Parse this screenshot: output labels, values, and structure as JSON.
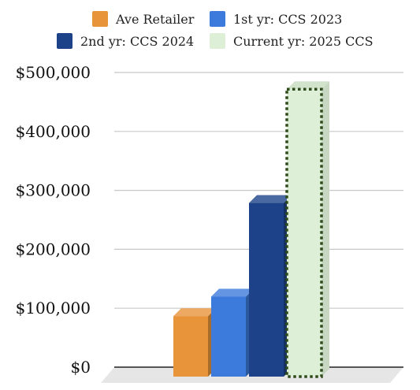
{
  "chart_data": {
    "type": "bar",
    "title": "",
    "xlabel": "",
    "ylabel": "",
    "ylim": [
      0,
      500000
    ],
    "yticks": [
      0,
      100000,
      200000,
      300000,
      400000,
      500000
    ],
    "ytick_labels": [
      "$0",
      "$100,000",
      "$200,000",
      "$300,000",
      "$400,000",
      "$500,000"
    ],
    "grid": true,
    "legend_position": "top",
    "style": "3d",
    "categories": [
      "Ave Retailer",
      "1st yr: CCS 2023",
      "2nd yr: CCS 2024",
      "Current yr: 2025 CCS"
    ],
    "series": [
      {
        "name": "Ave Retailer",
        "value": 100000,
        "color": "#E8943A"
      },
      {
        "name": "1st yr: CCS 2023",
        "value": 133000,
        "color": "#3C7BDC"
      },
      {
        "name": "2nd yr: CCS 2024",
        "value": 292000,
        "color": "#1D4289"
      },
      {
        "name": "Current yr: 2025 CCS",
        "value": 485000,
        "color": "#DDEFD6",
        "border": "dotted",
        "border_color": "#2E4A1A"
      }
    ]
  }
}
